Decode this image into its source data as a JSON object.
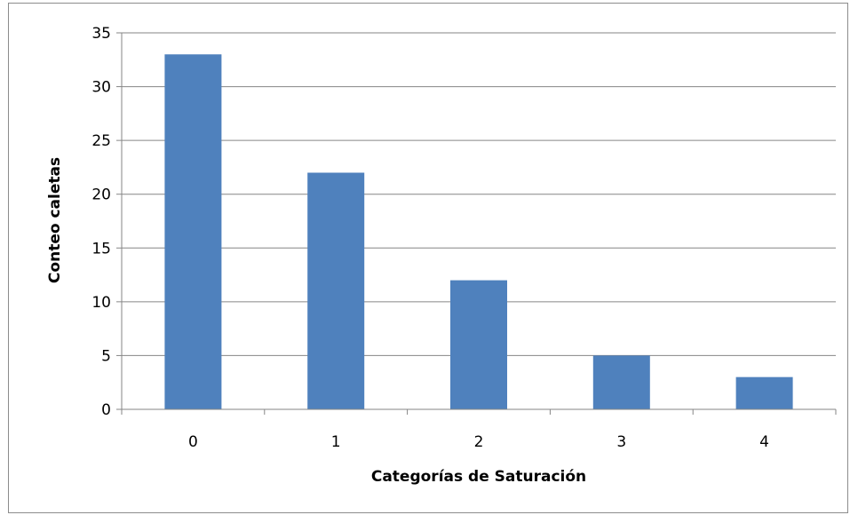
{
  "chart_data": {
    "type": "bar",
    "title": "",
    "categories": [
      "0",
      "1",
      "2",
      "3",
      "4"
    ],
    "values": [
      33,
      22,
      12,
      5,
      3
    ],
    "xlabel": "Categorías de Saturación",
    "ylabel": "Conteo caletas",
    "ylim": [
      0,
      35
    ],
    "yticks": [
      "0",
      "5",
      "10",
      "15",
      "20",
      "25",
      "30",
      "35"
    ],
    "grid": true,
    "legend": "none",
    "bar_color": "#4f81bd",
    "grid_color": "#868686",
    "axis_color": "#868686"
  }
}
